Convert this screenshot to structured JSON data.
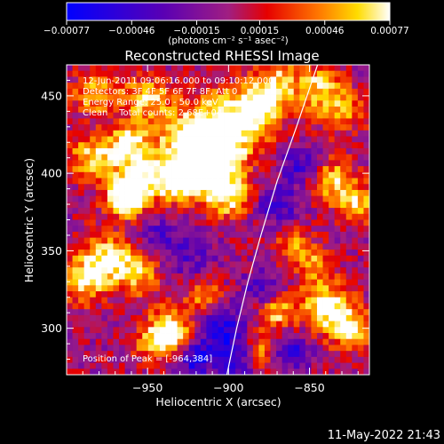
{
  "chart_data": {
    "type": "heatmap",
    "title": "Reconstructed RHESSI Image",
    "xlabel": "Heliocentric X (arcsec)",
    "ylabel": "Heliocentric Y (arcsec)",
    "xlim": [
      -1000,
      -813
    ],
    "ylim": [
      270,
      470
    ],
    "x_ticks": [
      -950,
      -900,
      -850
    ],
    "y_ticks": [
      300,
      350,
      400,
      450
    ],
    "x_tick_labels": [
      "−950",
      "−900",
      "−850"
    ],
    "y_tick_labels": [
      "300",
      "350",
      "400",
      "450"
    ],
    "colorbar": {
      "min": -0.00077,
      "max": 0.00077,
      "tick_values": [
        -0.00077,
        -0.00046,
        -0.00015,
        0.00015,
        0.00046,
        0.00077
      ],
      "tick_labels": [
        "−0.00077",
        "−0.00046",
        "−0.00015",
        "0.00015",
        "0.00046",
        "0.00077"
      ],
      "units_label": "(photons cm⁻² s⁻¹ asec⁻²)"
    },
    "annotations": [
      "12-Jun-2011 09:06:16.000 to 09:10:12.000",
      "Detectors: 3F 4F 5F 6F 7F 8F, Att 0",
      "Energy Range: 25.0 - 50.0 keV",
      "Clean    Total counts: 2.68E+04"
    ],
    "peak_label": "Position of Peak = [-964,384]",
    "peak_position": [
      -964,
      384
    ],
    "limb_curve": [
      [
        -901,
        270
      ],
      [
        -895,
        300
      ],
      [
        -888,
        330
      ],
      [
        -880,
        360
      ],
      [
        -870,
        395
      ],
      [
        -858,
        430
      ],
      [
        -845,
        470
      ]
    ],
    "blobs": [
      {
        "x": -900,
        "y": 430,
        "amp": 0.00085,
        "s": 16
      },
      {
        "x": -912,
        "y": 405,
        "amp": 0.0009,
        "s": 12
      },
      {
        "x": -925,
        "y": 420,
        "amp": 0.0007,
        "s": 14
      },
      {
        "x": -930,
        "y": 395,
        "amp": 0.0008,
        "s": 10
      },
      {
        "x": -900,
        "y": 385,
        "amp": 0.0007,
        "s": 10
      },
      {
        "x": -964,
        "y": 384,
        "amp": 0.00095,
        "s": 8
      },
      {
        "x": -955,
        "y": 395,
        "amp": 0.00075,
        "s": 10
      },
      {
        "x": -962,
        "y": 418,
        "amp": 0.00075,
        "s": 10
      },
      {
        "x": -985,
        "y": 410,
        "amp": 0.0006,
        "s": 10
      },
      {
        "x": -950,
        "y": 448,
        "amp": 0.0006,
        "s": 10
      },
      {
        "x": -982,
        "y": 452,
        "amp": 0.0006,
        "s": 10
      },
      {
        "x": -975,
        "y": 345,
        "amp": 0.0007,
        "s": 12
      },
      {
        "x": -990,
        "y": 330,
        "amp": 0.0006,
        "s": 10
      },
      {
        "x": -955,
        "y": 335,
        "amp": 0.0005,
        "s": 10
      },
      {
        "x": -935,
        "y": 300,
        "amp": 0.0007,
        "s": 10
      },
      {
        "x": -945,
        "y": 290,
        "amp": 0.0006,
        "s": 8
      },
      {
        "x": -915,
        "y": 320,
        "amp": 0.0005,
        "s": 8
      },
      {
        "x": -880,
        "y": 445,
        "amp": 0.00065,
        "s": 10
      },
      {
        "x": -870,
        "y": 460,
        "amp": 0.0005,
        "s": 10
      },
      {
        "x": -845,
        "y": 455,
        "amp": 0.0006,
        "s": 10
      },
      {
        "x": -830,
        "y": 440,
        "amp": 0.0005,
        "s": 10
      },
      {
        "x": -835,
        "y": 395,
        "amp": 0.00065,
        "s": 10
      },
      {
        "x": -820,
        "y": 380,
        "amp": 0.0006,
        "s": 8
      },
      {
        "x": -848,
        "y": 340,
        "amp": 0.0005,
        "s": 8
      },
      {
        "x": -840,
        "y": 315,
        "amp": 0.0008,
        "s": 10
      },
      {
        "x": -825,
        "y": 300,
        "amp": 0.0007,
        "s": 10
      },
      {
        "x": -870,
        "y": 310,
        "amp": 0.0006,
        "s": 8
      },
      {
        "x": -880,
        "y": 285,
        "amp": 0.0005,
        "s": 8
      },
      {
        "x": -860,
        "y": 355,
        "amp": 0.0004,
        "s": 8
      },
      {
        "x": -905,
        "y": 300,
        "amp": -0.00065,
        "s": 10
      },
      {
        "x": -920,
        "y": 280,
        "amp": -0.0006,
        "s": 8
      },
      {
        "x": -895,
        "y": 280,
        "amp": -0.00055,
        "s": 8
      },
      {
        "x": -870,
        "y": 380,
        "amp": -0.00045,
        "s": 10
      },
      {
        "x": -855,
        "y": 405,
        "amp": -0.0005,
        "s": 8
      },
      {
        "x": -862,
        "y": 285,
        "amp": -0.00055,
        "s": 8
      },
      {
        "x": -880,
        "y": 325,
        "amp": -0.0004,
        "s": 8
      },
      {
        "x": -925,
        "y": 350,
        "amp": -0.00035,
        "s": 12
      },
      {
        "x": -945,
        "y": 360,
        "amp": -0.0003,
        "s": 8
      }
    ]
  },
  "footer": {
    "timestamp": "11-May-2022 21:43"
  }
}
